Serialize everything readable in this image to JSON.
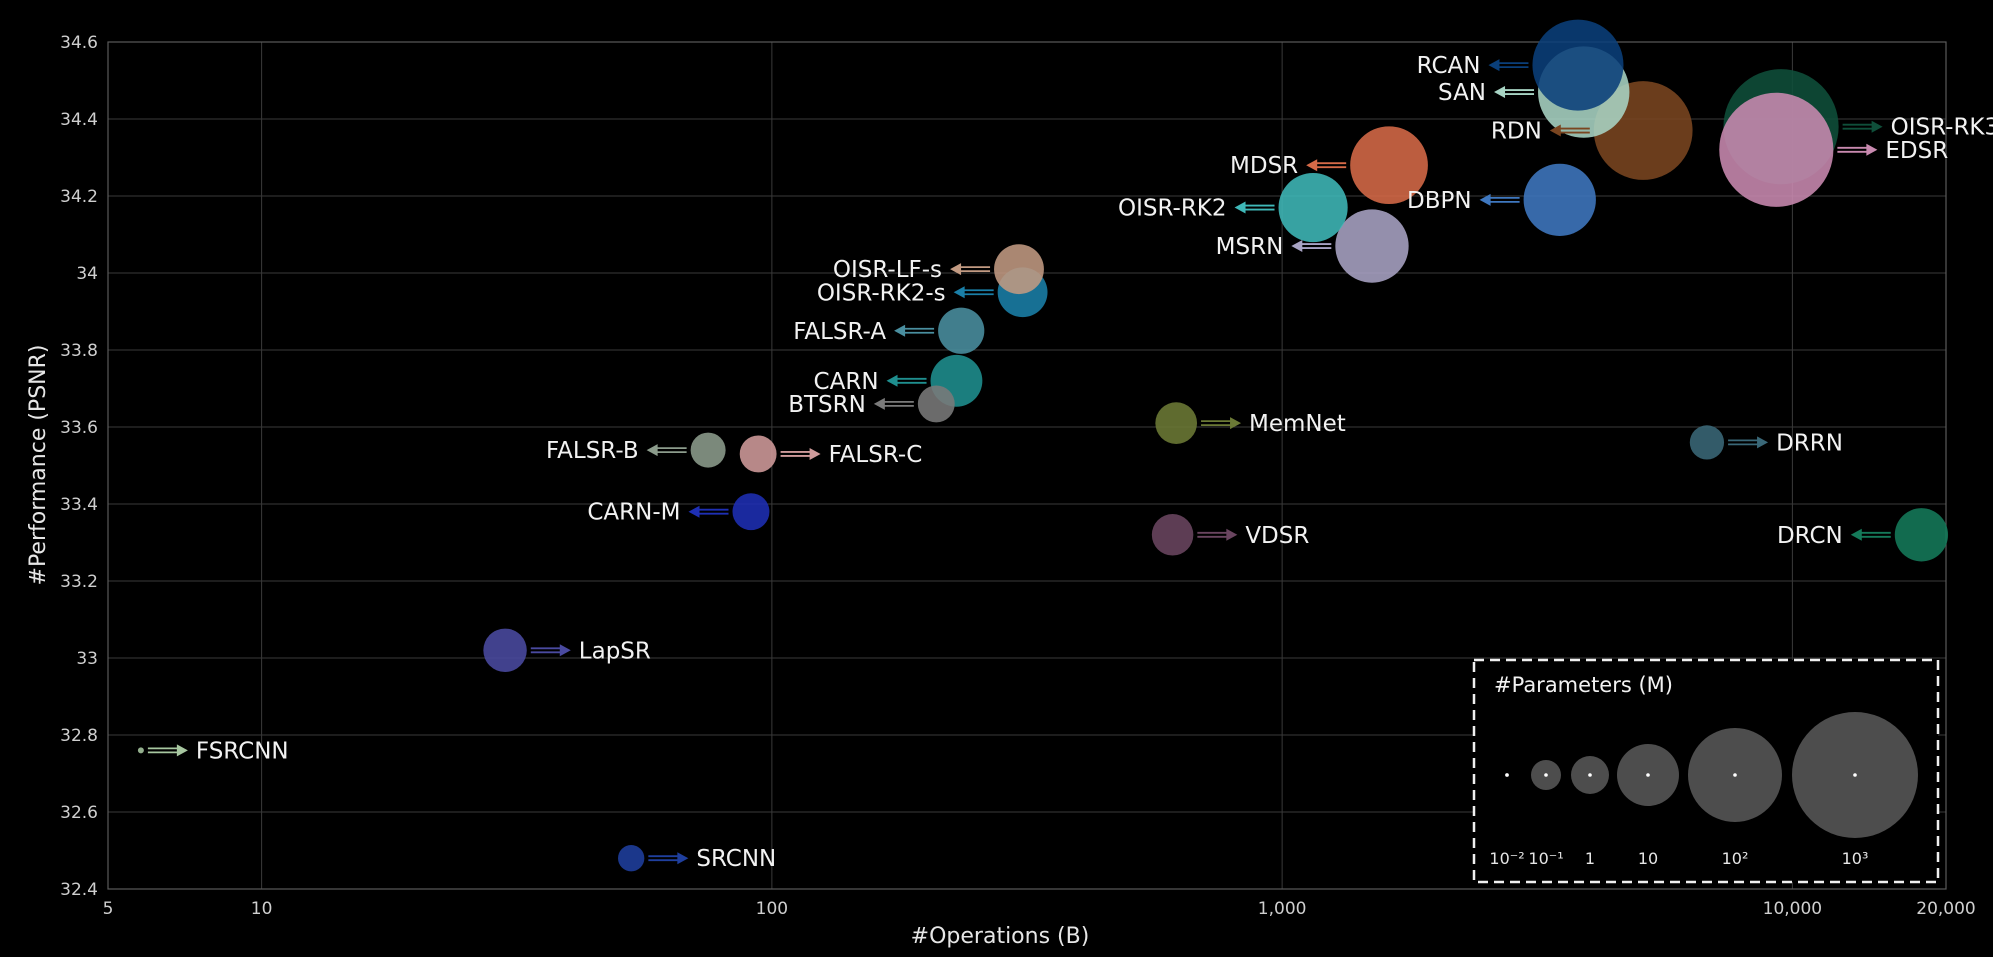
{
  "chart_data": {
    "type": "scatter",
    "title": "",
    "xlabel": "#Operations (B)",
    "ylabel": "#Performance (PSNR)",
    "xscale": "log",
    "xlim": [
      5,
      20000
    ],
    "ylim": [
      32.4,
      34.6
    ],
    "x_ticks": [
      5,
      10,
      100,
      1000,
      10000,
      20000
    ],
    "x_tick_labels": [
      "5",
      "10",
      "100",
      "1,000",
      "10,000",
      "20,000"
    ],
    "y_ticks": [
      32.4,
      32.6,
      32.8,
      33,
      33.2,
      33.4,
      33.6,
      33.8,
      34,
      34.2,
      34.4,
      34.6
    ],
    "y_tick_labels": [
      "32.4",
      "32.6",
      "32.8",
      "33",
      "33.2",
      "33.4",
      "33.6",
      "33.8",
      "34",
      "34.2",
      "34.4",
      "34.6"
    ],
    "grid": true,
    "size_encoding": "#Parameters (M)",
    "points": [
      {
        "name": "FSRCNN",
        "x": 5.8,
        "y": 32.76,
        "size": 0.012,
        "color": "#a7c7a0",
        "label_side": "right"
      },
      {
        "name": "SRCNN",
        "x": 53,
        "y": 32.48,
        "size": 0.057,
        "color": "#1f3f9e",
        "label_side": "right"
      },
      {
        "name": "LapSR",
        "x": 30,
        "y": 33.02,
        "size": 0.8,
        "color": "#4a4aa0",
        "label_side": "right"
      },
      {
        "name": "CARN-M",
        "x": 91,
        "y": 33.38,
        "size": 0.412,
        "color": "#1e2fb4",
        "label_side": "left"
      },
      {
        "name": "FALSR-B",
        "x": 75,
        "y": 33.54,
        "size": 0.326,
        "color": "#8c9c8c",
        "label_side": "left"
      },
      {
        "name": "FALSR-C",
        "x": 94,
        "y": 33.53,
        "size": 0.408,
        "color": "#d09b9b",
        "label_side": "right"
      },
      {
        "name": "BTSRN",
        "x": 210,
        "y": 33.66,
        "size": 0.41,
        "color": "#7a7a7a",
        "label_side": "left"
      },
      {
        "name": "CARN",
        "x": 230,
        "y": 33.72,
        "size": 1.592,
        "color": "#1f8f8f",
        "label_side": "left"
      },
      {
        "name": "FALSR-A",
        "x": 235,
        "y": 33.85,
        "size": 1.021,
        "color": "#4a8fa0",
        "label_side": "left"
      },
      {
        "name": "OISR-RK2-s",
        "x": 310,
        "y": 33.95,
        "size": 1.37,
        "color": "#1a7fa8",
        "label_side": "left"
      },
      {
        "name": "OISR-LF-s",
        "x": 305,
        "y": 34.01,
        "size": 1.37,
        "color": "#c29a82",
        "label_side": "left"
      },
      {
        "name": "MemNet",
        "x": 620,
        "y": 33.61,
        "size": 0.677,
        "color": "#6c7a36",
        "label_side": "right"
      },
      {
        "name": "VDSR",
        "x": 610,
        "y": 33.32,
        "size": 0.665,
        "color": "#6a4560",
        "label_side": "right"
      },
      {
        "name": "MSRN",
        "x": 1500,
        "y": 34.07,
        "size": 6.3,
        "color": "#a8a3c4",
        "label_side": "left"
      },
      {
        "name": "OISR-RK2",
        "x": 1150,
        "y": 34.17,
        "size": 4.97,
        "color": "#3fb8b8",
        "label_side": "left"
      },
      {
        "name": "MDSR",
        "x": 1620,
        "y": 34.28,
        "size": 8.0,
        "color": "#d66a48",
        "label_side": "left"
      },
      {
        "name": "DBPN",
        "x": 3500,
        "y": 34.19,
        "size": 5.95,
        "color": "#3f78c0",
        "label_side": "left"
      },
      {
        "name": "RDN",
        "x": 5100,
        "y": 34.37,
        "size": 22.3,
        "color": "#7a4520",
        "label_side": "left"
      },
      {
        "name": "RCAN",
        "x": 3800,
        "y": 34.54,
        "size": 15.6,
        "color": "#0a3f7a",
        "label_side": "left"
      },
      {
        "name": "SAN",
        "x": 3900,
        "y": 34.47,
        "size": 15.9,
        "color": "#a8d4c4",
        "label_side": "left"
      },
      {
        "name": "OISR-RK3",
        "x": 9500,
        "y": 34.38,
        "size": 44.9,
        "color": "#0f4f3a",
        "label_side": "right"
      },
      {
        "name": "EDSR",
        "x": 9300,
        "y": 34.32,
        "size": 43.0,
        "color": "#c98ab0",
        "label_side": "right"
      },
      {
        "name": "DRRN",
        "x": 6800,
        "y": 33.56,
        "size": 0.297,
        "color": "#3a6878",
        "label_side": "right"
      },
      {
        "name": "DRCN",
        "x": 17900,
        "y": 33.32,
        "size": 1.774,
        "color": "#157a5a",
        "label_side": "left"
      }
    ],
    "legend": {
      "title": "#Parameters (M)",
      "placement": "bottom-right",
      "labels": [
        "10⁻²",
        "10⁻¹",
        "1",
        "10",
        "10²",
        "10³"
      ]
    }
  }
}
